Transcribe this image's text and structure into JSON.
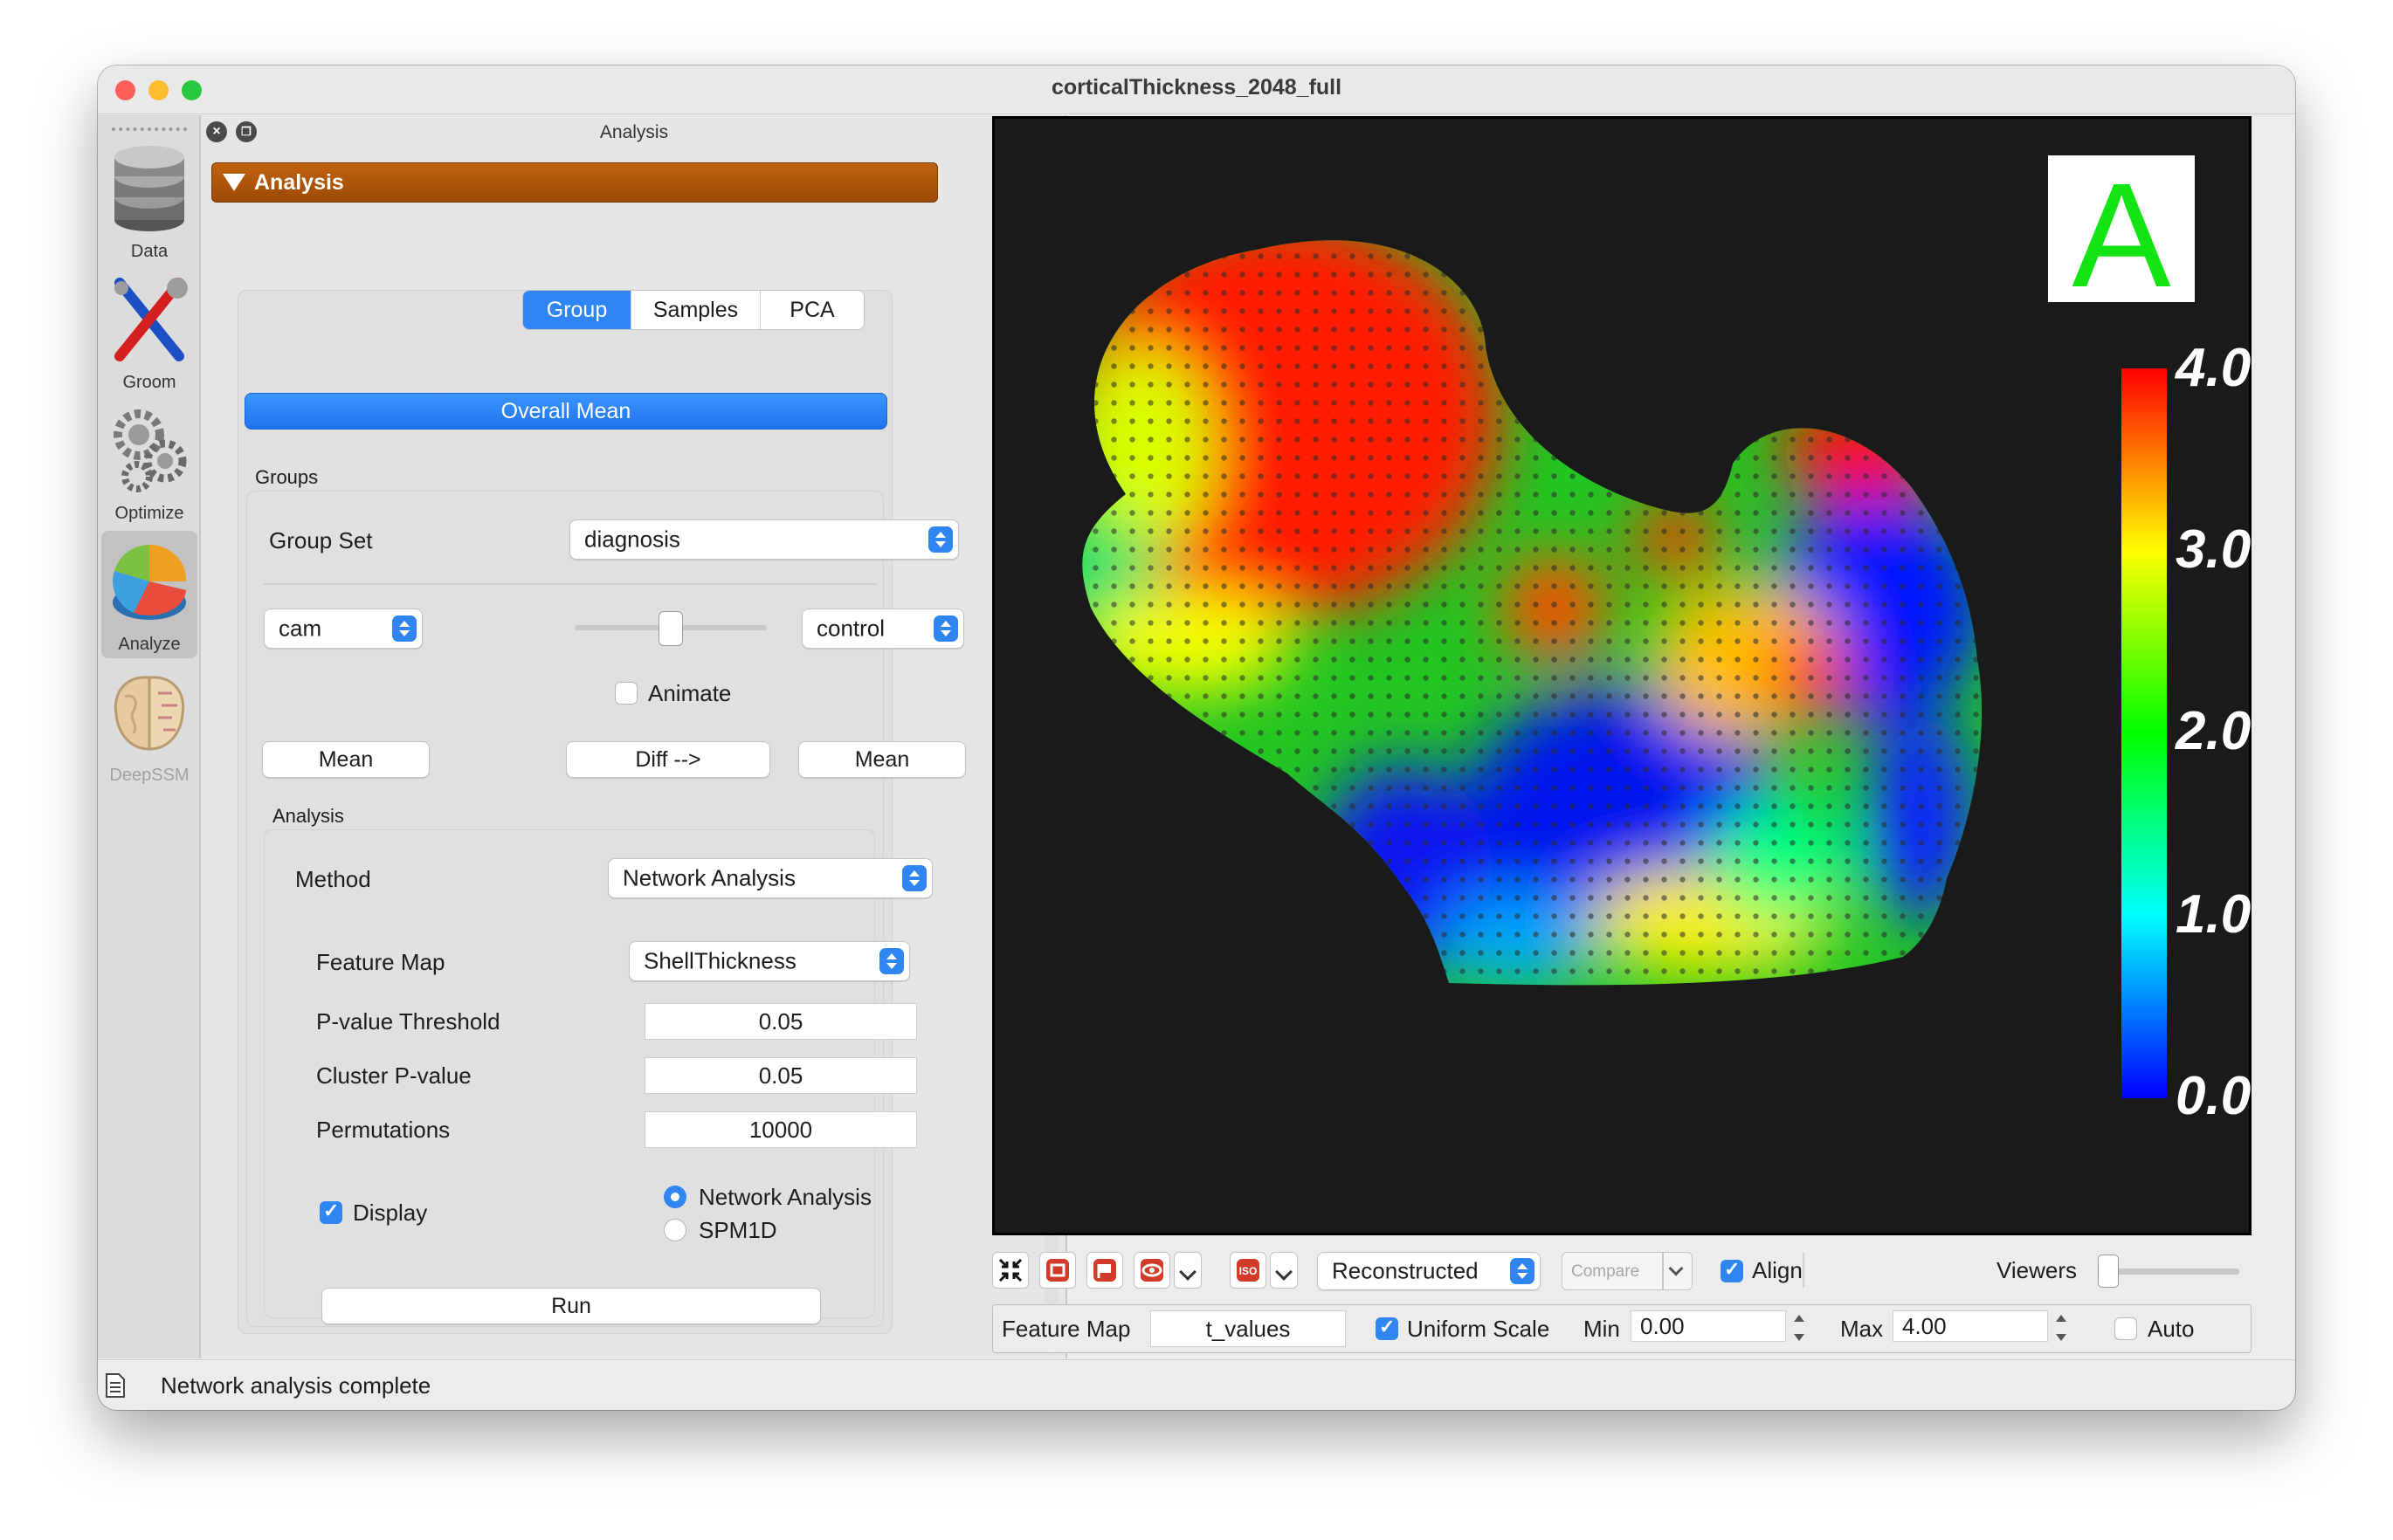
{
  "window": {
    "title": "corticalThickness_2048_full",
    "traffic_colors": {
      "close": "#fe5f57",
      "minimize": "#febc2e",
      "zoom": "#28c840"
    }
  },
  "sidebar": {
    "items": [
      {
        "label": "Data",
        "icon": "database-icon"
      },
      {
        "label": "Groom",
        "icon": "tools-icon"
      },
      {
        "label": "Optimize",
        "icon": "gears-icon"
      },
      {
        "label": "Analyze",
        "icon": "pie-chart-icon",
        "active": true
      },
      {
        "label": "DeepSSM",
        "icon": "brain-icon",
        "disabled": true
      }
    ]
  },
  "dock": {
    "title": "Analysis",
    "section_title": "Analysis",
    "tabs": [
      {
        "label": "Group",
        "active": true
      },
      {
        "label": "Samples"
      },
      {
        "label": "PCA"
      }
    ],
    "overall_mean_label": "Overall Mean",
    "groups_label": "Groups",
    "group_set_label": "Group Set",
    "group_set_value": "diagnosis",
    "left_group": "cam",
    "right_group": "control",
    "slider_value": 0.5,
    "animate_label": "Animate",
    "animate_checked": false,
    "mean_left_label": "Mean",
    "diff_label": "Diff -->",
    "mean_right_label": "Mean",
    "analysis_label": "Analysis",
    "method_label": "Method",
    "method_value": "Network Analysis",
    "feature_map_label": "Feature Map",
    "feature_map_value": "ShellThickness",
    "pvalue_label": "P-value Threshold",
    "pvalue_value": "0.05",
    "cluster_label": "Cluster P-value",
    "cluster_value": "0.05",
    "permutations_label": "Permutations",
    "permutations_value": "10000",
    "display_label": "Display",
    "display_checked": true,
    "radio_network": "Network Analysis",
    "radio_spm": "SPM1D",
    "radio_selected": "Network Analysis",
    "run_label": "Run"
  },
  "viewer": {
    "corner_label": "A",
    "colorbar_ticks": [
      "4.0",
      "3.0",
      "2.0",
      "1.0",
      "0.0"
    ],
    "colorbar_range": [
      0.0,
      4.0
    ],
    "colorbar_colors": [
      "#ff0000",
      "#ffff00",
      "#00ff00",
      "#00ffff",
      "#0000ff"
    ]
  },
  "toolbar": {
    "icons": [
      "autofit-icon",
      "frame-icon",
      "flag-icon",
      "eye-icon",
      "iso-icon"
    ],
    "display_mode": "Reconstructed",
    "compare_label": "Compare",
    "align_label": "Align",
    "align_checked": true,
    "viewers_label": "Viewers",
    "viewers_value": 1
  },
  "feature_bar": {
    "feature_map_label": "Feature Map",
    "feature_map_value": "t_values",
    "uniform_scale_label": "Uniform Scale",
    "uniform_scale_checked": true,
    "min_label": "Min",
    "min_value": "0.00",
    "max_label": "Max",
    "max_value": "4.00",
    "auto_label": "Auto",
    "auto_checked": false
  },
  "status": {
    "message": "Network analysis complete",
    "icon": "document-icon"
  }
}
